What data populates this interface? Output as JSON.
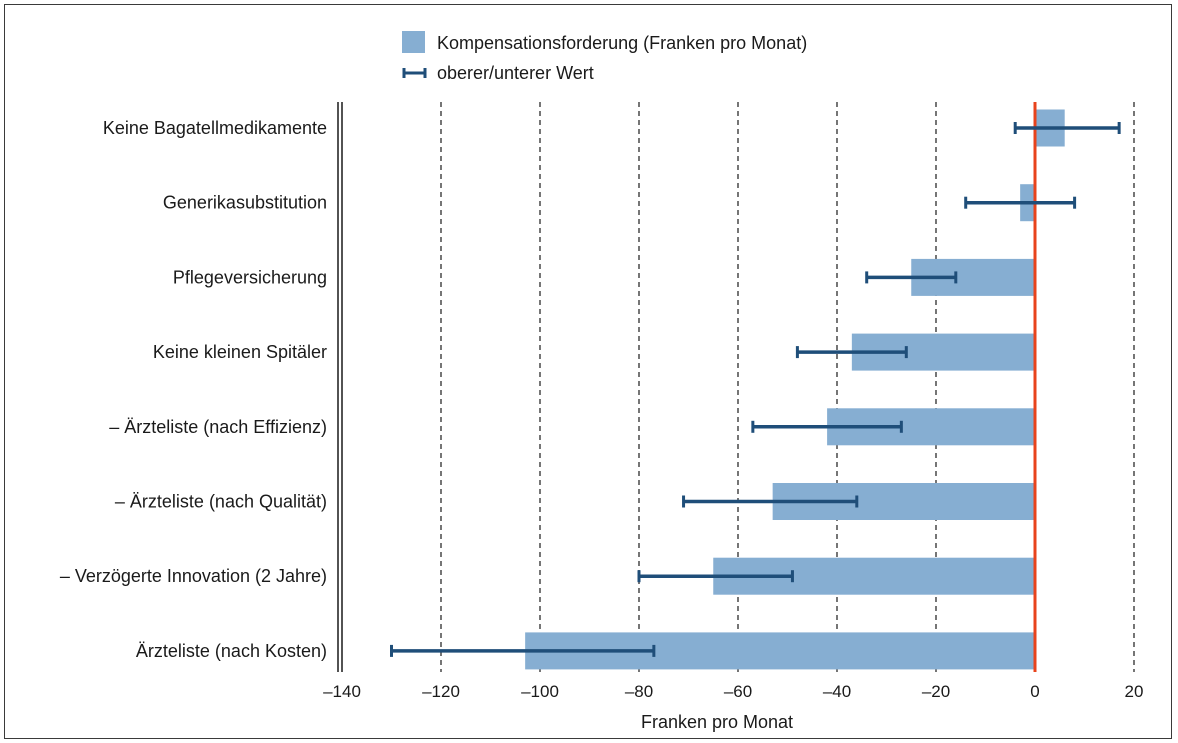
{
  "chart_data": {
    "type": "bar",
    "orientation": "horizontal",
    "categories": [
      "Keine Bagatellmedikamente",
      "Generikasubstitution",
      "Pflegeversicherung",
      "Keine kleinen Spitäler",
      "– Ärzteliste (nach Effizienz)",
      "– Ärzteliste (nach Qualität)",
      "– Verzögerte Innovation (2 Jahre)",
      "Ärzteliste (nach Kosten)"
    ],
    "series": [
      {
        "name": "Kompensationsforderung (Franken pro Monat)",
        "values": [
          6,
          -3,
          -25,
          -37,
          -42,
          -53,
          -65,
          -103
        ]
      }
    ],
    "error_bars": {
      "name": "oberer/unterer Wert",
      "lower": [
        -4,
        -14,
        -34,
        -48,
        -57,
        -71,
        -80,
        -130
      ],
      "upper": [
        17,
        8,
        -16,
        -26,
        -27,
        -36,
        -49,
        -77
      ]
    },
    "xlabel": "Franken pro Monat",
    "xlim": [
      -140,
      20
    ],
    "xticks": [
      -140,
      -120,
      -100,
      -80,
      -60,
      -40,
      -20,
      0,
      20
    ],
    "xtick_labels": [
      "–140",
      "–120",
      "–100",
      "–80",
      "–60",
      "–40",
      "–20",
      "0",
      "20"
    ],
    "grid": "vertical dashed",
    "zero_line": true,
    "legend_position": "top-center",
    "colors": {
      "bar": "#86aed2",
      "error_bar": "#1f4e79",
      "zero_line": "#e8431c",
      "grid": "#1a1a1a",
      "text": "#1a1a1a"
    }
  }
}
